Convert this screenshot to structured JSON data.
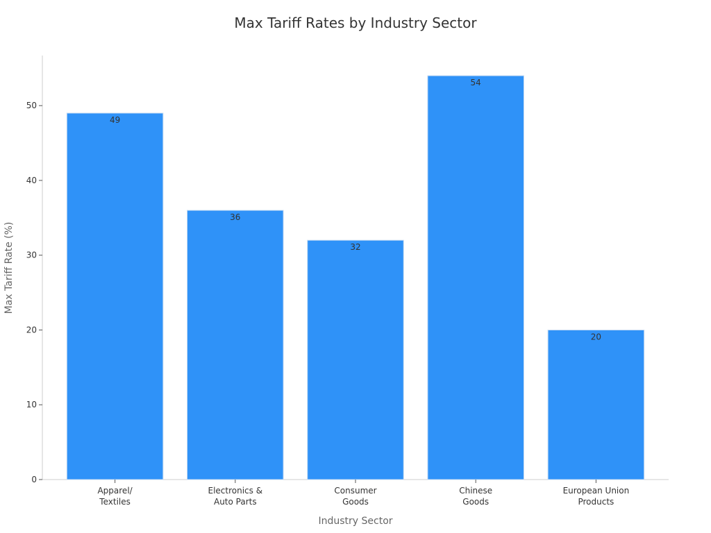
{
  "chart_data": {
    "type": "bar",
    "title": "Max Tariff Rates by Industry Sector",
    "xlabel": "Industry Sector",
    "ylabel": "Max Tariff Rate (%)",
    "categories": [
      "Apparel/\nTextiles",
      "Electronics &\nAuto Parts",
      "Consumer\nGoods",
      "Chinese\nGoods",
      "European Union\nProducts"
    ],
    "values": [
      49,
      36,
      32,
      54,
      20
    ],
    "ylim": [
      0,
      56.7
    ],
    "yticks": [
      0,
      10,
      20,
      30,
      40,
      50
    ],
    "bar_color": "#2f92f8",
    "grid": false,
    "legend": "none"
  }
}
